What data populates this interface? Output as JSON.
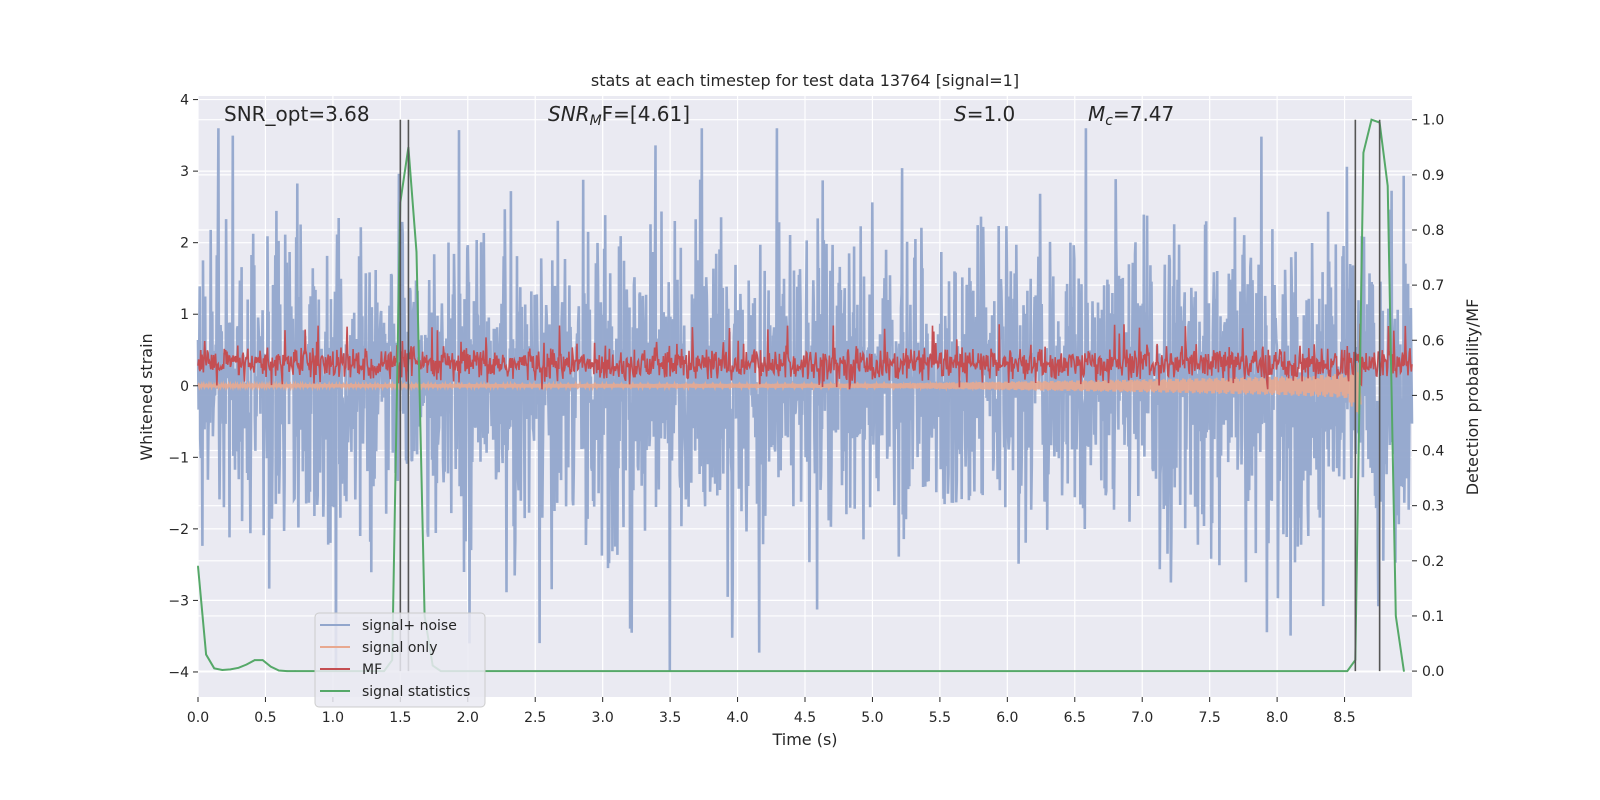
{
  "chart_data": {
    "type": "line",
    "title": "stats at each timestep for test data 13764 [signal=1]",
    "xlabel": "Time (s)",
    "ylabel": "Whitened strain",
    "y2label": "Detection probability/MF",
    "xlim": [
      0.0,
      9.0
    ],
    "ylim": [
      -4.35,
      4.05
    ],
    "y2lim": [
      -0.047,
      1.043
    ],
    "xticks": [
      "0.0",
      "0.5",
      "1.0",
      "1.5",
      "2.0",
      "2.5",
      "3.0",
      "3.5",
      "4.0",
      "4.5",
      "5.0",
      "5.5",
      "6.0",
      "6.5",
      "7.0",
      "7.5",
      "8.0",
      "8.5"
    ],
    "xtick_values": [
      0.0,
      0.5,
      1.0,
      1.5,
      2.0,
      2.5,
      3.0,
      3.5,
      4.0,
      4.5,
      5.0,
      5.5,
      6.0,
      6.5,
      7.0,
      7.5,
      8.0,
      8.5
    ],
    "yticks": [
      "−4",
      "−3",
      "−2",
      "−1",
      "0",
      "1",
      "2",
      "3",
      "4"
    ],
    "ytick_values": [
      -4,
      -3,
      -2,
      -1,
      0,
      1,
      2,
      3,
      4
    ],
    "y2ticks": [
      "0.0",
      "0.1",
      "0.2",
      "0.3",
      "0.4",
      "0.5",
      "0.6",
      "0.7",
      "0.8",
      "0.9",
      "1.0"
    ],
    "y2tick_values": [
      0.0,
      0.1,
      0.2,
      0.3,
      0.4,
      0.5,
      0.6,
      0.7,
      0.8,
      0.9,
      1.0
    ],
    "grid": true,
    "legend_position": "lower-left",
    "annotations": {
      "snr_opt": "SNR_opt=3.68",
      "snr_mf_main": "SNR",
      "snr_mf_sub": "M",
      "snr_mf_rest": "F=[4.61]",
      "s_main": "S",
      "s_rest": "=1.0",
      "mc_main": "M",
      "mc_sub": "c",
      "mc_rest": "=7.47"
    },
    "vertical_lines_x": [
      1.5,
      1.56,
      8.58,
      8.76
    ],
    "vertical_lines_y2_range": [
      0.0,
      1.0
    ],
    "series": [
      {
        "name": "signal+ noise",
        "color": "#92a6cc",
        "axis": "left",
        "description_values": {
          "envelope_min": -4.0,
          "envelope_max": 3.6,
          "typical_band": [
            -1.3,
            1.3
          ]
        }
      },
      {
        "name": "signal only",
        "color": "#e8a88f",
        "axis": "left",
        "x": [
          0.0,
          5.0,
          6.0,
          7.0,
          8.0,
          8.5,
          8.62
        ],
        "amplitude": [
          0.02,
          0.03,
          0.06,
          0.09,
          0.13,
          0.17,
          0.45
        ]
      },
      {
        "name": "MF",
        "color": "#c44e52",
        "axis": "left",
        "description_values": {
          "mean": 0.3,
          "band": [
            0.0,
            0.6
          ],
          "peaks": 0.87
        }
      },
      {
        "name": "signal statistics",
        "color": "#55a868",
        "axis": "right",
        "x": [
          0.0,
          0.06,
          0.12,
          0.18,
          0.24,
          0.3,
          0.36,
          0.42,
          0.48,
          0.54,
          0.6,
          0.66,
          0.72,
          1.38,
          1.44,
          1.5,
          1.56,
          1.62,
          1.68,
          1.74,
          1.8,
          1.86,
          8.52,
          8.58,
          8.64,
          8.7,
          8.76,
          8.82,
          8.88,
          8.94
        ],
        "values": [
          0.19,
          0.03,
          0.005,
          0.002,
          0.003,
          0.006,
          0.012,
          0.02,
          0.02,
          0.008,
          0.001,
          0.0,
          0.0,
          0.0,
          0.02,
          0.85,
          0.95,
          0.76,
          0.1,
          0.01,
          0.0,
          0.0,
          0.0,
          0.02,
          0.94,
          1.0,
          0.995,
          0.88,
          0.1,
          0.0
        ]
      }
    ]
  }
}
